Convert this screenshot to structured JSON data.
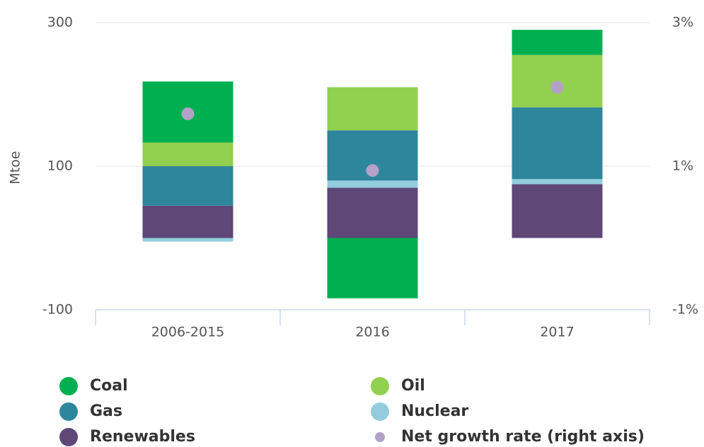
{
  "chart_data": {
    "type": "bar",
    "stacked": true,
    "ylabel": "Mtoe",
    "categories": [
      "2006-2015",
      "2016",
      "2017"
    ],
    "series": [
      {
        "name": "Coal",
        "color": "#00b050",
        "values": [
          85,
          -84,
          35
        ]
      },
      {
        "name": "Oil",
        "color": "#92d050",
        "values": [
          33,
          60,
          73
        ]
      },
      {
        "name": "Gas",
        "color": "#2e869c",
        "values": [
          55,
          70,
          100
        ]
      },
      {
        "name": "Nuclear",
        "color": "#93cddd",
        "values": [
          -5,
          10,
          7
        ]
      },
      {
        "name": "Renewables",
        "color": "#5f4778",
        "values": [
          45,
          70,
          75
        ]
      },
      {
        "name": "Net growth rate (right axis)",
        "color": "#b3a2c7",
        "type": "scatter",
        "axis": "y2",
        "values": [
          1.73,
          0.94,
          2.1
        ]
      }
    ],
    "ylim": [
      -100,
      300
    ],
    "yticks": [
      -100,
      100,
      300
    ],
    "y2lim": [
      -1,
      3
    ],
    "y2ticks": [
      {
        "value": -1,
        "label": "-1%"
      },
      {
        "value": 1,
        "label": "1%"
      },
      {
        "value": 3,
        "label": "3%"
      }
    ],
    "grid": true,
    "legend": "bottom"
  }
}
